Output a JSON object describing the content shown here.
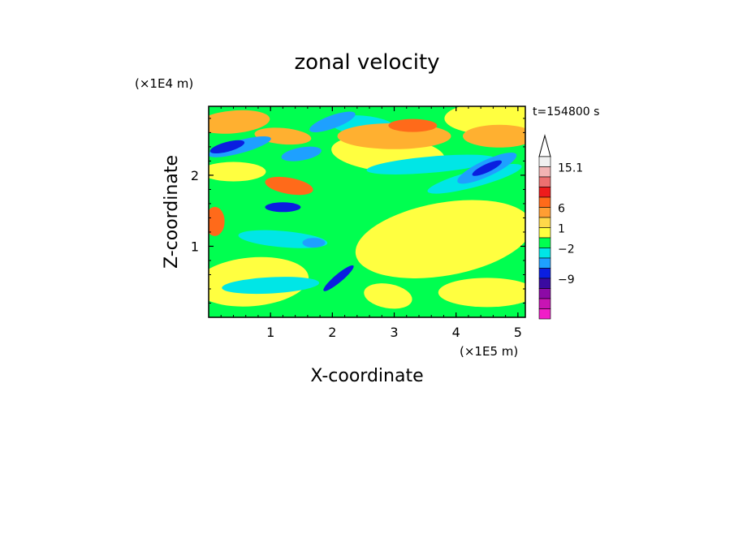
{
  "chart_data": {
    "type": "heatmap",
    "title": "zonal velocity",
    "xlabel": "X-coordinate",
    "ylabel": "Z-coordinate",
    "x_unit": "(×1E5 m)",
    "y_unit": "(×1E4 m)",
    "time_label": "t=154800 s",
    "xlim": [
      0,
      5.12
    ],
    "ylim": [
      0,
      2.97
    ],
    "x_ticks": [
      1,
      2,
      3,
      4,
      5
    ],
    "y_ticks": [
      1,
      2
    ],
    "colorbar": {
      "levels": [
        {
          "color": "#f0f0f0"
        },
        {
          "color": "#f2b4b4"
        },
        {
          "color": "#ec7070"
        },
        {
          "color": "#ee1c1c"
        },
        {
          "color": "#ff6a1a"
        },
        {
          "color": "#ff9e33"
        },
        {
          "color": "#ffd84a"
        },
        {
          "color": "#ffff40"
        },
        {
          "color": "#00ff50"
        },
        {
          "color": "#00e6e6"
        },
        {
          "color": "#1ea0ff"
        },
        {
          "color": "#0a1ee0"
        },
        {
          "color": "#3a0aa0"
        },
        {
          "color": "#8c0aa6"
        },
        {
          "color": "#c814b4"
        },
        {
          "color": "#f01ec8"
        }
      ],
      "labels": [
        "15.1",
        "6",
        "1",
        "−2",
        "−9"
      ]
    },
    "field_colors": {
      "green": "#00ff50",
      "yellow": "#ffff40",
      "orange": "#ffb030",
      "cyan": "#00e6e6",
      "blue": "#1ea0ff",
      "navy": "#0a1ee0",
      "red": "#ff6a1a"
    }
  }
}
